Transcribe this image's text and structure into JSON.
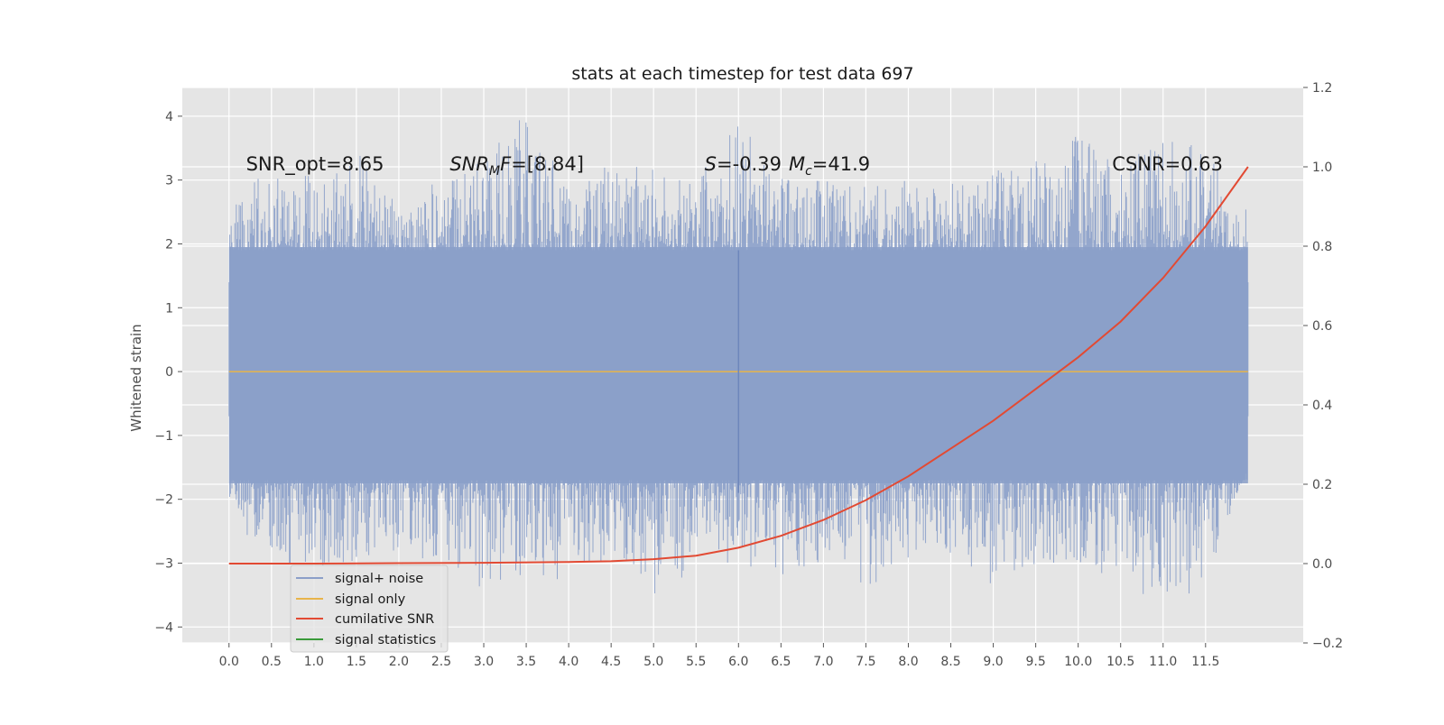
{
  "chart_data": {
    "type": "line",
    "title": "stats at each timestep for test data 697",
    "ylabel": "Whitened strain",
    "xlabel": "",
    "xlim": [
      -0.55,
      12.65
    ],
    "ylim": [
      -4.25,
      4.45
    ],
    "y2lim": [
      -0.2,
      1.2
    ],
    "grid": true,
    "x_ticks": [
      0.0,
      0.5,
      1.0,
      1.5,
      2.0,
      2.5,
      3.0,
      3.5,
      4.0,
      4.5,
      5.0,
      5.5,
      6.0,
      6.5,
      7.0,
      7.5,
      8.0,
      8.5,
      9.0,
      9.5,
      10.0,
      10.5,
      11.0,
      11.5
    ],
    "x_tick_labels": [
      "0.0",
      "0.5",
      "1.0",
      "1.5",
      "2.0",
      "2.5",
      "3.0",
      "3.5",
      "4.0",
      "4.5",
      "5.0",
      "5.5",
      "6.0",
      "6.5",
      "7.0",
      "7.5",
      "8.0",
      "8.5",
      "9.0",
      "9.5",
      "10.0",
      "10.5",
      "11.0",
      "11.5"
    ],
    "y_ticks": [
      4,
      3,
      2,
      1,
      0,
      -1,
      -2,
      -3,
      -4
    ],
    "y_tick_labels": [
      "4",
      "3",
      "2",
      "1",
      "0",
      "−1",
      "−2",
      "−3",
      "−4"
    ],
    "y2_ticks": [
      1.2,
      1.0,
      0.8,
      0.6,
      0.4,
      0.2,
      0.0,
      -0.2
    ],
    "y2_tick_labels": [
      "1.2",
      "1.0",
      "0.8",
      "0.6",
      "0.4",
      "0.2",
      "0.0",
      "−0.2"
    ],
    "annotations": {
      "snr_opt": {
        "text": "SNR_opt=8.65",
        "x": 0.2,
        "y": 3.15
      },
      "snr_mf": {
        "pre": "SNR",
        "sub": "M",
        "mid": "F",
        "post": "=[8.84]",
        "x": 2.6,
        "y": 3.15
      },
      "spin_mass": {
        "s_sym": "S",
        "s_val": "=-0.39",
        "m_sym": "M",
        "m_sub": "c",
        "m_val": "=41.9",
        "x": 5.6,
        "y": 3.15
      },
      "csnr": {
        "text": "CSNR=0.63",
        "x": 10.4,
        "y": 3.15
      }
    },
    "legend": {
      "placement": "lower-left",
      "entries": [
        {
          "label": "signal+ noise",
          "color": "#8c9fc8"
        },
        {
          "label": "signal only",
          "color": "#e8b44a"
        },
        {
          "label": "cumilative SNR",
          "color": "#e24a33"
        },
        {
          "label": "signal statistics",
          "color": "#3a9a3a"
        }
      ]
    },
    "series": [
      {
        "name": "signal+ noise",
        "color": "#7f96c2",
        "axis": "left",
        "x_range": [
          0.0,
          12.0
        ],
        "y_envelope": {
          "x": [
            0.0,
            0.5,
            1.0,
            1.5,
            2.0,
            2.5,
            3.0,
            3.5,
            4.0,
            4.5,
            5.0,
            5.5,
            6.0,
            6.5,
            7.0,
            7.5,
            8.0,
            8.5,
            9.0,
            9.5,
            10.0,
            10.5,
            11.0,
            11.5,
            12.0
          ],
          "max": [
            2.5,
            3.3,
            3.1,
            3.5,
            2.9,
            3.0,
            3.3,
            4.1,
            2.9,
            3.3,
            3.2,
            3.0,
            3.9,
            3.1,
            3.0,
            2.9,
            3.0,
            3.0,
            3.2,
            3.4,
            3.8,
            3.2,
            3.8,
            3.5,
            2.5
          ],
          "min": [
            -2.3,
            -3.0,
            -3.1,
            -3.0,
            -2.9,
            -3.0,
            -3.5,
            -3.2,
            -3.3,
            -2.9,
            -3.6,
            -3.1,
            -3.0,
            -3.2,
            -3.0,
            -3.4,
            -3.0,
            -2.9,
            -3.4,
            -3.1,
            -3.0,
            -3.3,
            -3.8,
            -3.3,
            -1.5
          ]
        }
      },
      {
        "name": "signal only",
        "color": "#e8b44a",
        "axis": "left",
        "x": [
          0.0,
          12.0
        ],
        "values": [
          0.0,
          0.0
        ]
      },
      {
        "name": "cumilative SNR",
        "color": "#e24a33",
        "axis": "right",
        "x": [
          0.0,
          1.0,
          2.0,
          3.0,
          4.0,
          4.5,
          5.0,
          5.5,
          6.0,
          6.5,
          7.0,
          7.5,
          8.0,
          8.5,
          9.0,
          9.5,
          10.0,
          10.5,
          11.0,
          11.5,
          12.0
        ],
        "values": [
          0.0,
          0.0,
          0.001,
          0.002,
          0.004,
          0.006,
          0.011,
          0.02,
          0.04,
          0.07,
          0.11,
          0.16,
          0.22,
          0.29,
          0.36,
          0.44,
          0.52,
          0.61,
          0.72,
          0.85,
          1.0
        ]
      },
      {
        "name": "signal statistics",
        "color": "#3a9a3a",
        "axis": "left",
        "x": [],
        "values": []
      }
    ]
  },
  "colors": {
    "plot_background": "#e5e5e5",
    "grid": "#ffffff",
    "noise_fill": "#98aacd",
    "spike": "#8a9fc9"
  }
}
